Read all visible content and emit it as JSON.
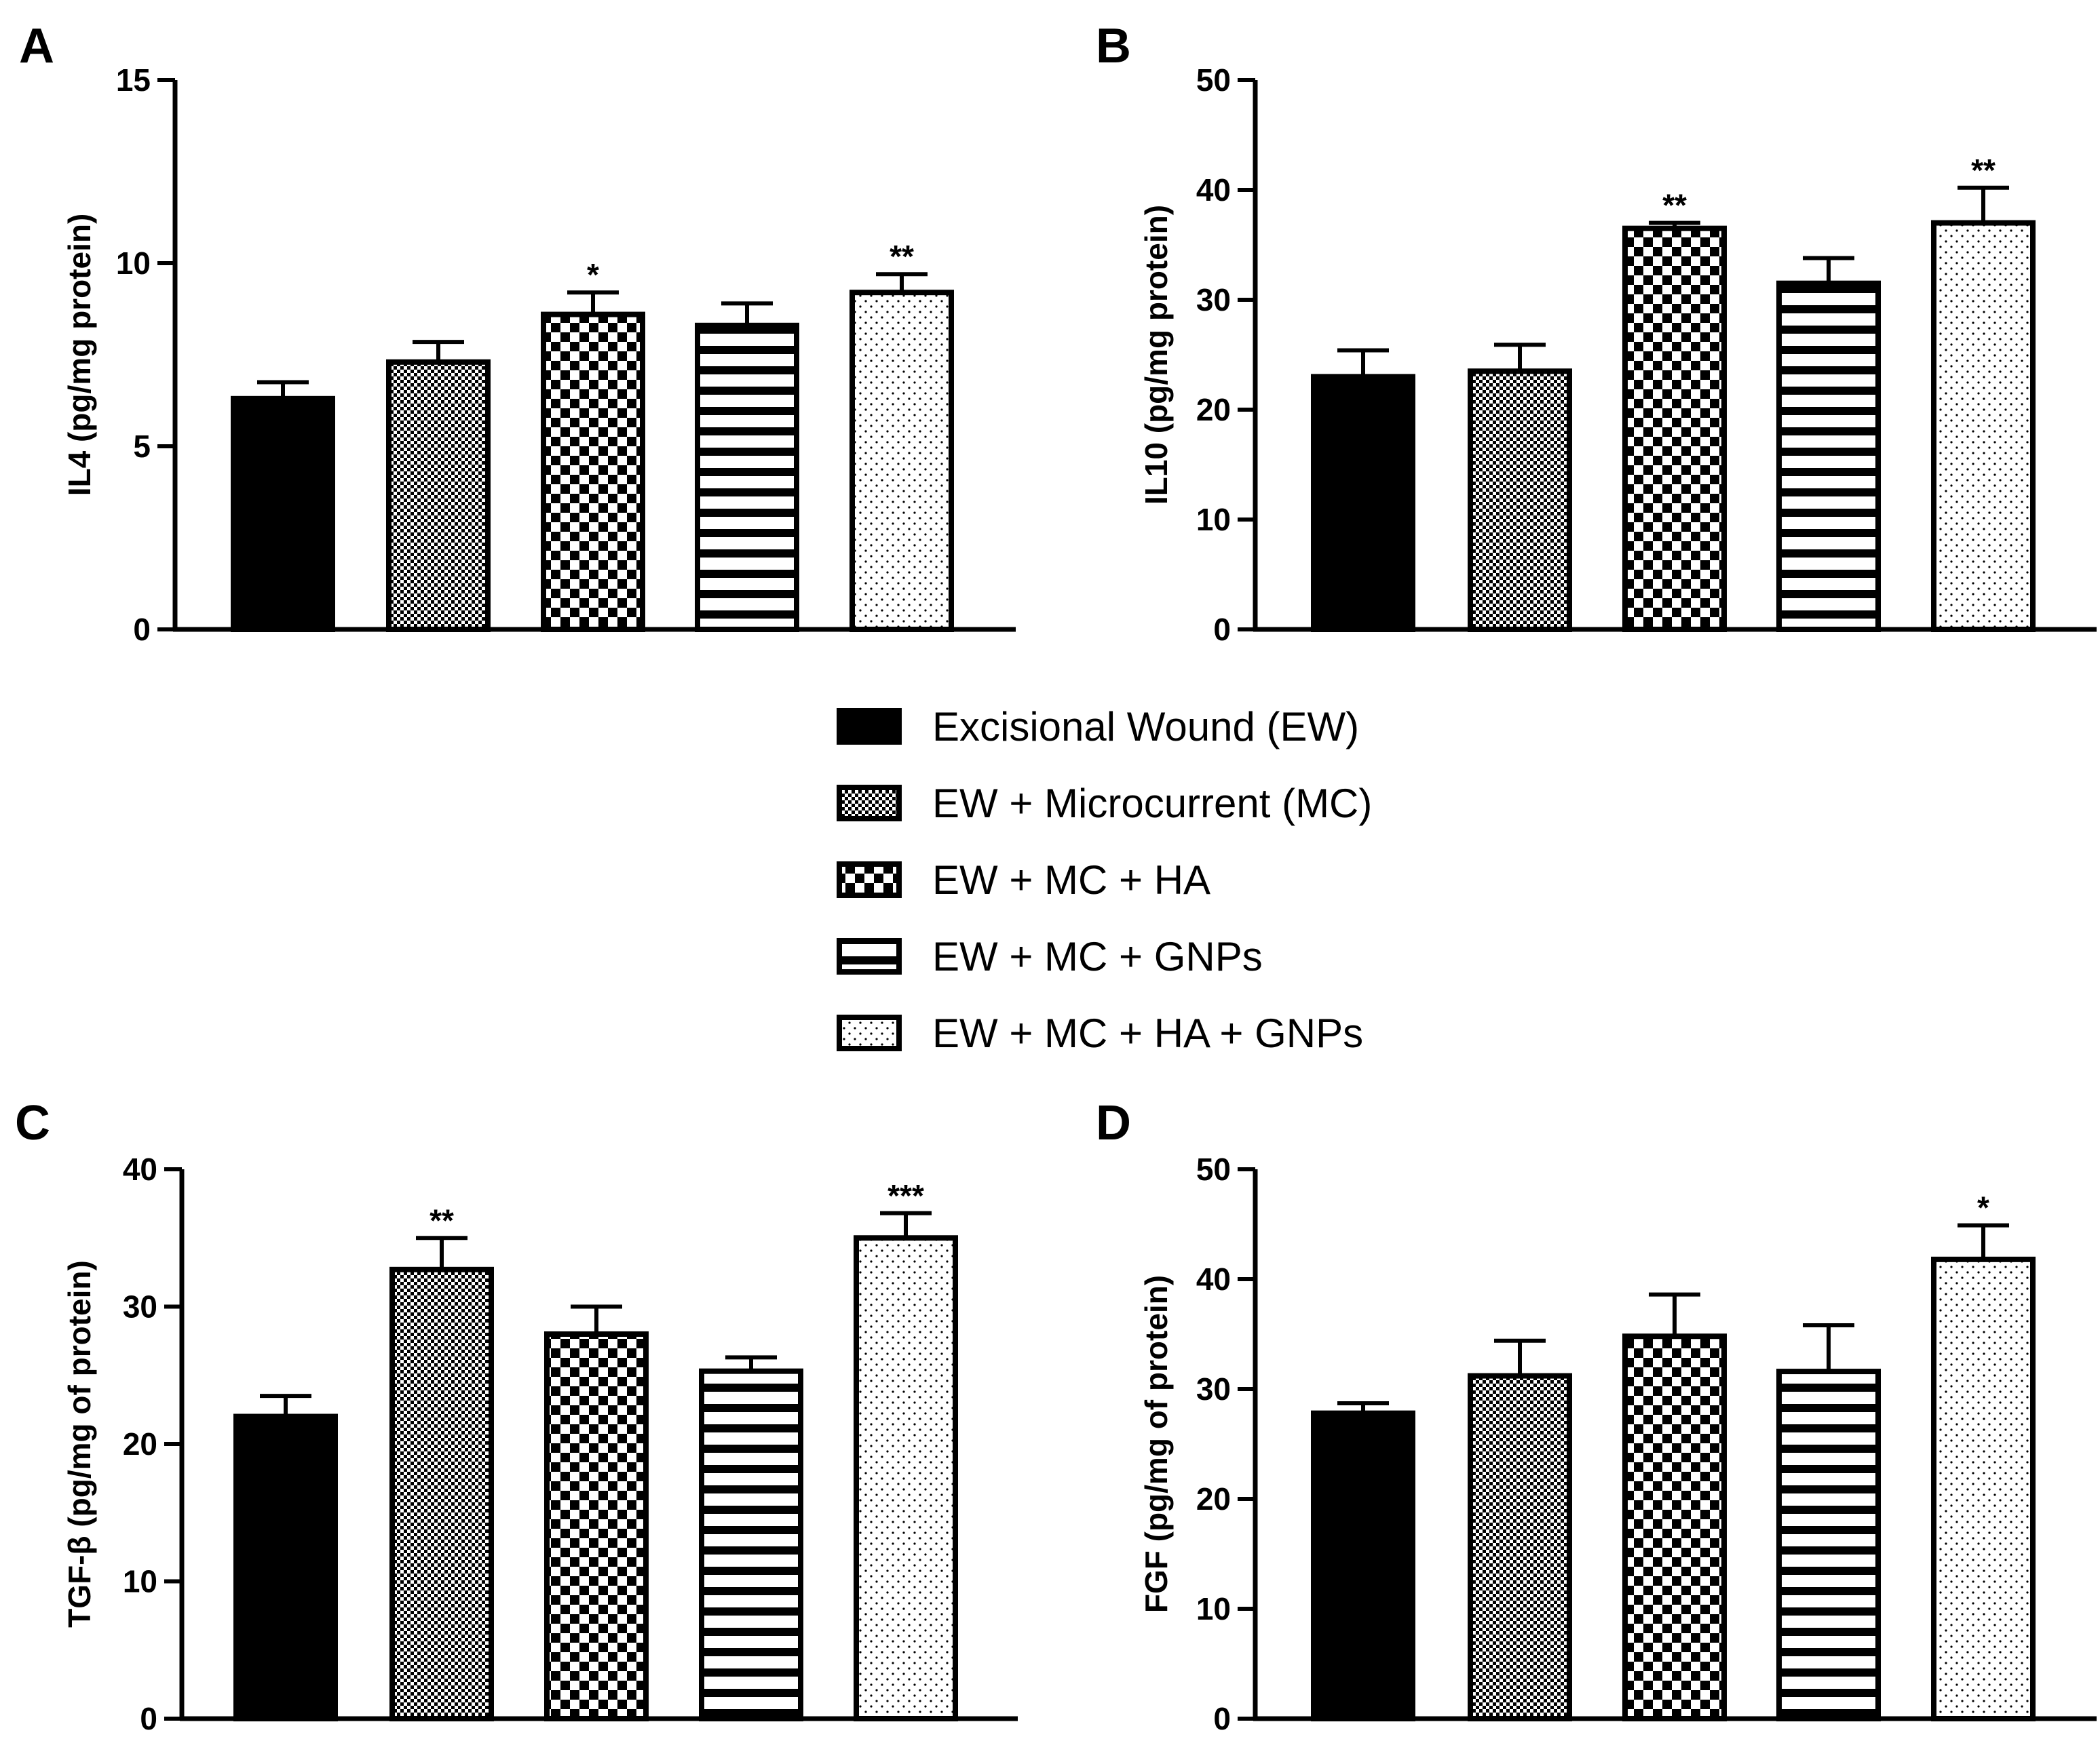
{
  "legend": [
    {
      "label": "Excisional Wound (EW)",
      "pattern": "solid"
    },
    {
      "label": "EW + Microcurrent (MC)",
      "pattern": "fine-check"
    },
    {
      "label": "EW + MC + HA",
      "pattern": "check"
    },
    {
      "label": "EW + MC + GNPs",
      "pattern": "hstripes"
    },
    {
      "label": "EW + MC + HA + GNPs",
      "pattern": "dots"
    }
  ],
  "colors": {
    "ink": "#000000",
    "background": "#ffffff"
  },
  "chart_data": [
    {
      "panel": "A",
      "type": "bar",
      "xlabel": "",
      "ylabel": "IL4 (pg/mg protein)",
      "ylim": [
        0,
        15
      ],
      "yticks": [
        0,
        5,
        10,
        15
      ],
      "series": [
        {
          "values": [
            6.3,
            7.3,
            8.6,
            8.3,
            9.2
          ],
          "errors": [
            0.45,
            0.55,
            0.6,
            0.6,
            0.5
          ],
          "significance": [
            "",
            "",
            "*",
            "",
            "**"
          ]
        }
      ]
    },
    {
      "panel": "B",
      "type": "bar",
      "xlabel": "",
      "ylabel": "IL10 (pg/mg protein)",
      "ylim": [
        0,
        50
      ],
      "yticks": [
        0,
        10,
        20,
        30,
        40,
        50
      ],
      "series": [
        {
          "values": [
            23.0,
            23.5,
            36.5,
            31.5,
            37.0
          ],
          "errors": [
            2.4,
            2.4,
            0.5,
            2.3,
            3.2
          ],
          "significance": [
            "",
            "",
            "**",
            "",
            "**"
          ]
        }
      ]
    },
    {
      "panel": "C",
      "type": "bar",
      "xlabel": "",
      "ylabel": "TGF-β (pg/mg of protein)",
      "ylim": [
        0,
        40
      ],
      "yticks": [
        0,
        10,
        20,
        30,
        40
      ],
      "series": [
        {
          "values": [
            22.0,
            32.7,
            28.0,
            25.3,
            35.0
          ],
          "errors": [
            1.5,
            2.3,
            2.0,
            1.0,
            1.8
          ],
          "significance": [
            "",
            "**",
            "",
            "",
            "***"
          ]
        }
      ]
    },
    {
      "panel": "D",
      "type": "bar",
      "xlabel": "",
      "ylabel": "FGF (pg/mg of protein)",
      "ylim": [
        0,
        50
      ],
      "yticks": [
        0,
        10,
        20,
        30,
        40,
        50
      ],
      "series": [
        {
          "values": [
            27.8,
            31.2,
            34.8,
            31.6,
            41.8
          ],
          "errors": [
            0.9,
            3.2,
            3.8,
            4.2,
            3.1
          ],
          "significance": [
            "",
            "",
            "",
            "",
            "*"
          ]
        }
      ]
    }
  ]
}
